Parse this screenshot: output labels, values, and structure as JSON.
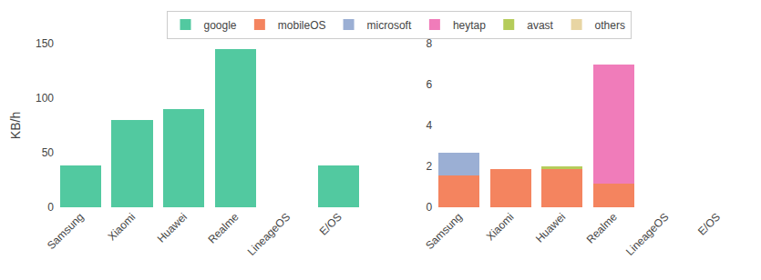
{
  "chart_data": [
    {
      "type": "bar",
      "categories": [
        "Samsung",
        "Xiaomi",
        "Huawei",
        "Realme",
        "LineageOS",
        "E/OS"
      ],
      "series": [
        {
          "name": "google",
          "color": "#52c9a0",
          "values": [
            38,
            80,
            90,
            145,
            0,
            38
          ]
        }
      ],
      "ylabel": "KB/h",
      "ylim": [
        0,
        150
      ],
      "yticks": [
        0,
        50,
        100,
        150
      ],
      "grid": false,
      "legend": "top"
    },
    {
      "type": "bar",
      "categories": [
        "Samsung",
        "Xiaomi",
        "Huawei",
        "Realme",
        "LineageOS",
        "E/OS"
      ],
      "series": [
        {
          "name": "mobileOS",
          "color": "#f4845f",
          "values": [
            1.55,
            1.85,
            1.9,
            1.15,
            0,
            0
          ]
        },
        {
          "name": "microsoft",
          "color": "#9bafd4",
          "values": [
            1.1,
            0,
            0,
            0,
            0,
            0
          ]
        },
        {
          "name": "heytap",
          "color": "#f07cba",
          "values": [
            0,
            0,
            0,
            5.85,
            0,
            0
          ]
        },
        {
          "name": "avast",
          "color": "#b5cc5a",
          "values": [
            0,
            0,
            0.08,
            0,
            0,
            0
          ]
        },
        {
          "name": "others",
          "color": "#e8d5a3",
          "values": [
            0,
            0,
            0,
            0,
            0,
            0
          ]
        }
      ],
      "stacked": true,
      "ylim": [
        0,
        8
      ],
      "yticks": [
        0,
        2,
        4,
        6,
        8
      ],
      "grid": false,
      "legend": "top"
    }
  ]
}
